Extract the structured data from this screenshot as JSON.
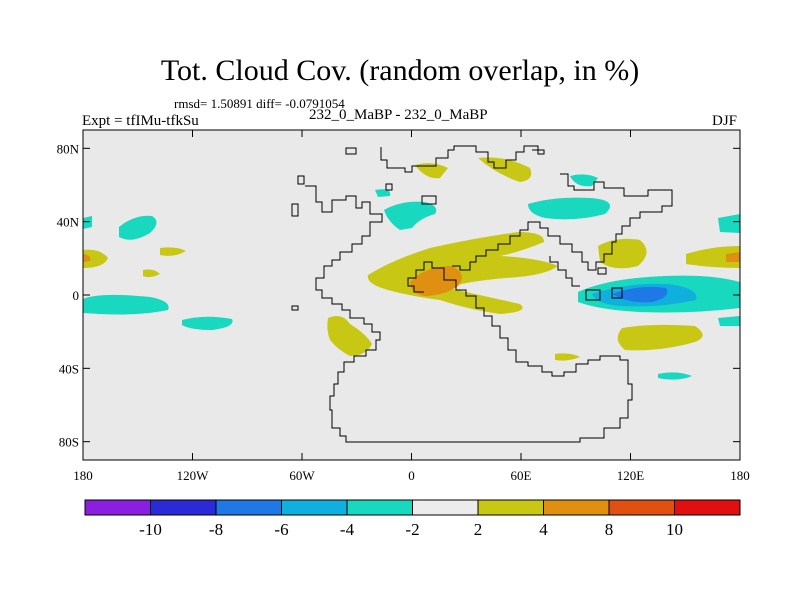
{
  "title": "Tot. Cloud Cov. (random overlap, in %)",
  "stats": "rmsd= 1.50891 diff= -0.0791054",
  "experiment": "Expt = tfIMu-tfkSu",
  "case_label": "232_0_MaBP - 232_0_MaBP",
  "season": "DJF",
  "axes": {
    "lat_ticks": [
      {
        "value": 80,
        "label": "80N"
      },
      {
        "value": 40,
        "label": "40N"
      },
      {
        "value": 0,
        "label": "0"
      },
      {
        "value": -40,
        "label": "40S"
      },
      {
        "value": -80,
        "label": "80S"
      }
    ],
    "lon_ticks": [
      {
        "value": -180,
        "label": "180"
      },
      {
        "value": -120,
        "label": "120W"
      },
      {
        "value": -60,
        "label": "60W"
      },
      {
        "value": 0,
        "label": "0"
      },
      {
        "value": 60,
        "label": "60E"
      },
      {
        "value": 120,
        "label": "120E"
      },
      {
        "value": 180,
        "label": "180"
      }
    ]
  },
  "colorbar": {
    "boundaries": [
      "-10",
      "-8",
      "-6",
      "-4",
      "-2",
      "2",
      "4",
      "8",
      "10"
    ],
    "colors": [
      "#8a1fe0",
      "#2a2ad8",
      "#1e78e6",
      "#10b0de",
      "#18d8c0",
      "#ececec",
      "#c8c814",
      "#e09010",
      "#e05010",
      "#e01010"
    ]
  },
  "colors": {
    "background": "#e9e9e9",
    "low_teal": "#18d8c0",
    "low_cyan": "#10b0de",
    "low_blue": "#1e78e6",
    "high_yellow": "#c8c814",
    "high_orange": "#e09010",
    "high_red": "#e05010"
  }
}
